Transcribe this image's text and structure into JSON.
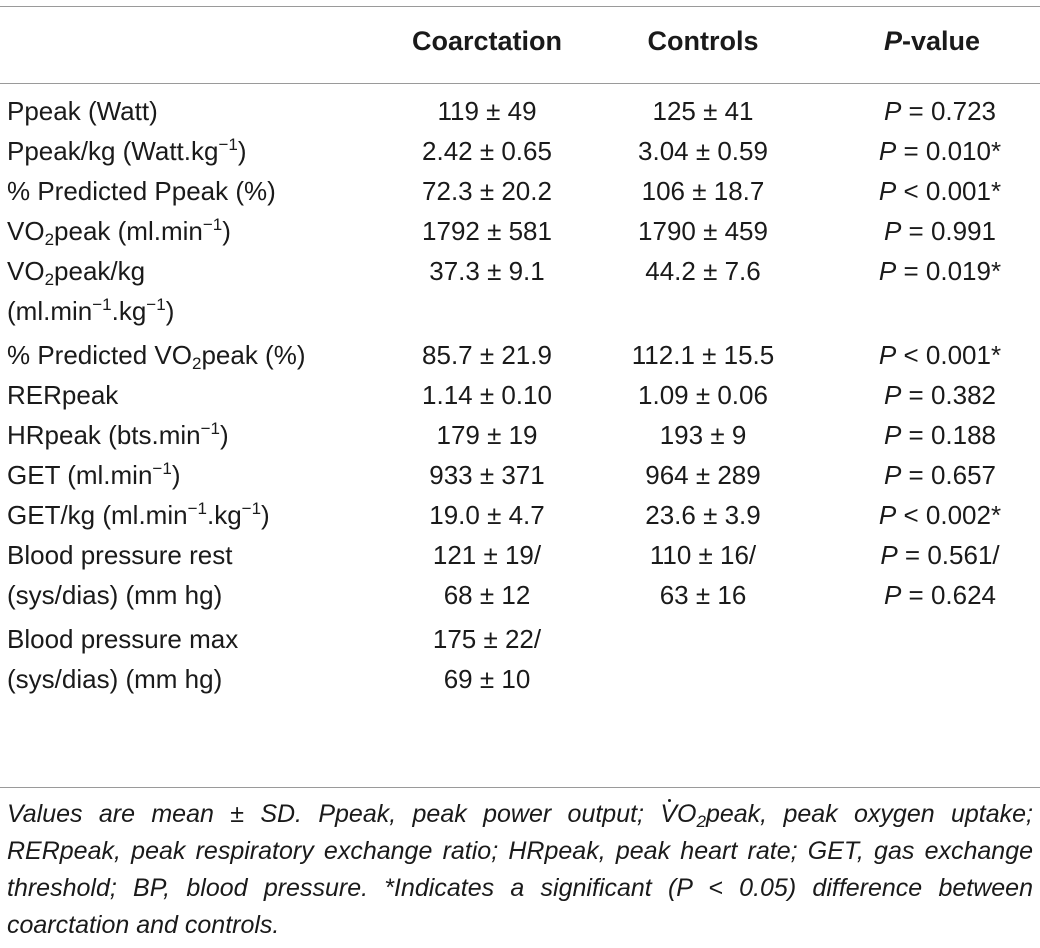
{
  "header": {
    "col_coarctation": "Coarctation",
    "col_controls": "Controls",
    "col_pvalue_italic": "P",
    "col_pvalue_rest": "-value"
  },
  "rows": [
    {
      "label": "Ppeak (Watt)",
      "coarctation": "119 ± 49",
      "controls": "125 ± 41",
      "p_sym": "P",
      "p_rest": " = 0.723"
    },
    {
      "label_pre": "Ppeak/kg (Watt.kg",
      "label_sup": "−1",
      "label_post": ")",
      "coarctation": "2.42 ± 0.65",
      "controls": "3.04 ± 0.59",
      "p_sym": "P",
      "p_rest": " = 0.010*"
    },
    {
      "label": "% Predicted Ppeak (%)",
      "coarctation": "72.3 ± 20.2",
      "controls": "106 ± 18.7",
      "p_sym": "P",
      "p_rest": " < 0.001*"
    },
    {
      "label_pre": "VO",
      "label_sub": "2",
      "label_mid": "peak (ml.min",
      "label_sup": "−1",
      "label_post": ")",
      "coarctation": "1792 ± 581",
      "controls": "1790 ± 459",
      "p_sym": "P",
      "p_rest": " = 0.991"
    },
    {
      "line1_pre": "VO",
      "line1_sub": "2",
      "line1_post": "peak/kg",
      "line2_pre": "(ml.min",
      "line2_sup1": "−1",
      "line2_mid": ".kg",
      "line2_sup2": "−1",
      "line2_post": ")",
      "coarctation": "37.3 ± 9.1",
      "controls": "44.2 ± 7.6",
      "p_sym": "P",
      "p_rest": " = 0.019*"
    },
    {
      "label_pre": "% Predicted VO",
      "label_sub": "2",
      "label_post": "peak (%)",
      "coarctation": "85.7 ± 21.9",
      "controls": "112.1 ± 15.5",
      "p_sym": "P",
      "p_rest": " < 0.001*"
    },
    {
      "label": "RERpeak",
      "coarctation": "1.14 ± 0.10",
      "controls": "1.09 ± 0.06",
      "p_sym": "P",
      "p_rest": " = 0.382"
    },
    {
      "label_pre": "HRpeak (bts.min",
      "label_sup": "−1",
      "label_post": ")",
      "coarctation": "179 ± 19",
      "controls": "193 ± 9",
      "p_sym": "P",
      "p_rest": " = 0.188"
    },
    {
      "label_pre": "GET (ml.min",
      "label_sup": "−1",
      "label_post": ")",
      "coarctation": "933 ± 371",
      "controls": "964 ± 289",
      "p_sym": "P",
      "p_rest": " = 0.657"
    },
    {
      "label_pre": "GET/kg (ml.min",
      "label_sup": "−1",
      "label_mid": ".kg",
      "label_sup2": "−1",
      "label_post": ")",
      "coarctation": "19.0 ± 4.7",
      "controls": "23.6 ± 3.9",
      "p_sym": "P",
      "p_rest": " < 0.002*"
    },
    {
      "line1": "Blood pressure rest",
      "line2": "(sys/dias) (mm hg)",
      "coarctation_1": "121 ± 19/",
      "coarctation_2": "68 ± 12",
      "controls_1": "110 ± 16/",
      "controls_2": "63 ± 16",
      "p1_sym": "P",
      "p1_rest": " = 0.561/",
      "p2_sym": "P",
      "p2_rest": " = 0.624"
    },
    {
      "line1": "Blood pressure max",
      "line2": "(sys/dias) (mm hg)",
      "coarctation_1": "175 ± 22/",
      "coarctation_2": "69 ± 10"
    }
  ],
  "footnote": {
    "part1": "Values are mean ± SD. Ppeak, peak power output; ",
    "vo": "VO",
    "vo_sub": "2",
    "part2": "peak, peak oxygen uptake; RERpeak, peak respiratory exchange ratio; HRpeak, peak heart rate; GET, gas exchange threshold; BP, blood pressure. *Indicates a significant (P < 0.05) difference between coarctation and controls."
  }
}
